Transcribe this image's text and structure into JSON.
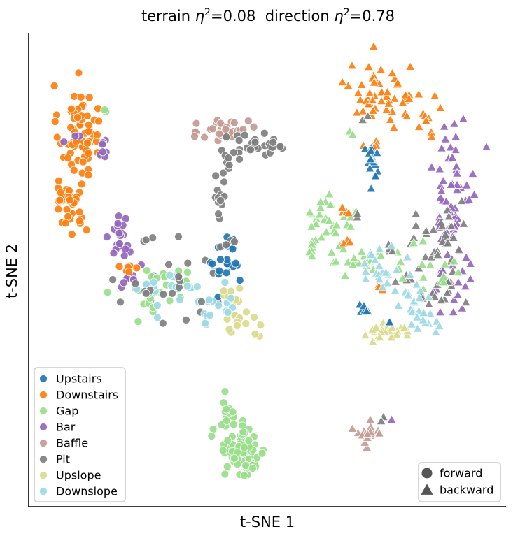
{
  "chart_data": {
    "type": "scatter",
    "title": {
      "part1_prefix": "terrain ",
      "part1_value": "=0.08",
      "part2_prefix": "direction ",
      "part2_value": "=0.78",
      "symbol": "η",
      "exponent": "2"
    },
    "xlabel": "t-SNE 1",
    "ylabel": "t-SNE 2",
    "xlim": [
      0,
      100
    ],
    "ylim": [
      0,
      100
    ],
    "x_ticks": "none",
    "y_ticks": "none",
    "grid": false,
    "legend_terrain_placement": "bottom-left",
    "legend_direction_placement": "bottom-right",
    "colors": {
      "Upstairs": "#1f77b4",
      "Downstairs": "#ff7f0e",
      "Gap": "#98df8a",
      "Bar": "#9467bd",
      "Baffle": "#c49c94",
      "Pit": "#7f7f7f",
      "Upslope": "#dbdb8d",
      "Downslope": "#9edae5"
    },
    "terrain_order": [
      "Upstairs",
      "Downstairs",
      "Gap",
      "Bar",
      "Baffle",
      "Pit",
      "Upslope",
      "Downslope"
    ],
    "directions": [
      {
        "name": "forward",
        "marker": "circle"
      },
      {
        "name": "backward",
        "marker": "triangle"
      }
    ],
    "clusters": [
      {
        "terrain": "Downstairs",
        "direction": "forward",
        "cx": 9.5,
        "cy": 82,
        "sx": 2.2,
        "sy": 5,
        "n": 65
      },
      {
        "terrain": "Downstairs",
        "direction": "forward",
        "cx": 7.5,
        "cy": 66,
        "sx": 2,
        "sy": 3.5,
        "n": 40
      },
      {
        "terrain": "Gap",
        "direction": "forward",
        "cx": 15,
        "cy": 86,
        "sx": 0.4,
        "sy": 0.5,
        "n": 2
      },
      {
        "terrain": "Bar",
        "direction": "forward",
        "cx": 14,
        "cy": 78.5,
        "sx": 1.4,
        "sy": 1.8,
        "n": 7
      },
      {
        "terrain": "Bar",
        "direction": "forward",
        "cx": 8,
        "cy": 79,
        "sx": 0.8,
        "sy": 1,
        "n": 3
      },
      {
        "terrain": "Bar",
        "direction": "forward",
        "cx": 18.5,
        "cy": 58.5,
        "sx": 1.2,
        "sy": 3.2,
        "n": 22
      },
      {
        "terrain": "Bar",
        "direction": "forward",
        "cx": 23,
        "cy": 48,
        "sx": 2.5,
        "sy": 1.5,
        "n": 12
      },
      {
        "terrain": "Downstairs",
        "direction": "forward",
        "cx": 20.5,
        "cy": 51,
        "sx": 1.5,
        "sy": 1,
        "n": 6
      },
      {
        "terrain": "Gap",
        "direction": "forward",
        "cx": 27,
        "cy": 47,
        "sx": 4,
        "sy": 3,
        "n": 25
      },
      {
        "terrain": "Downslope",
        "direction": "forward",
        "cx": 31,
        "cy": 46.5,
        "sx": 6,
        "sy": 3,
        "n": 25
      },
      {
        "terrain": "Pit",
        "direction": "forward",
        "cx": 32,
        "cy": 46,
        "sx": 7,
        "sy": 4.5,
        "n": 22
      },
      {
        "terrain": "Upstairs",
        "direction": "forward",
        "cx": 42,
        "cy": 52,
        "sx": 1.6,
        "sy": 3.2,
        "n": 22
      },
      {
        "terrain": "Upslope",
        "direction": "forward",
        "cx": 44,
        "cy": 42,
        "sx": 2.2,
        "sy": 3.5,
        "n": 25
      },
      {
        "terrain": "Downslope",
        "direction": "forward",
        "cx": 39,
        "cy": 41.5,
        "sx": 3,
        "sy": 1.5,
        "n": 12
      },
      {
        "terrain": "Baffle",
        "direction": "forward",
        "cx": 41,
        "cy": 82,
        "sx": 2.5,
        "sy": 1.8,
        "n": 35
      },
      {
        "terrain": "Pit",
        "direction": "forward",
        "cx": 46,
        "cy": 78.5,
        "sx": 3,
        "sy": 2,
        "n": 20
      },
      {
        "terrain": "Pit",
        "direction": "forward",
        "cx": 51.5,
        "cy": 78,
        "sx": 1.5,
        "sy": 1,
        "n": 10
      },
      {
        "terrain": "Pit",
        "direction": "forward",
        "cx": 41.5,
        "cy": 73,
        "sx": 0.8,
        "sy": 1.5,
        "n": 6
      },
      {
        "terrain": "Pit",
        "direction": "forward",
        "cx": 39.5,
        "cy": 66.5,
        "sx": 0.8,
        "sy": 2,
        "n": 12
      },
      {
        "terrain": "Pit",
        "direction": "forward",
        "cx": 42,
        "cy": 57,
        "sx": 1.5,
        "sy": 1.5,
        "n": 4
      },
      {
        "terrain": "Pit",
        "direction": "forward",
        "cx": 25,
        "cy": 58,
        "sx": 1,
        "sy": 0.6,
        "n": 3
      },
      {
        "terrain": "Gap",
        "direction": "forward",
        "cx": 42,
        "cy": 20,
        "sx": 0.8,
        "sy": 1.3,
        "n": 10
      },
      {
        "terrain": "Gap",
        "direction": "forward",
        "cx": 45,
        "cy": 10.5,
        "sx": 2.5,
        "sy": 3,
        "n": 85
      },
      {
        "terrain": "Downstairs",
        "direction": "backward",
        "cx": 76,
        "cy": 90,
        "sx": 4,
        "sy": 3.5,
        "n": 55
      },
      {
        "terrain": "Downstairs",
        "direction": "backward",
        "cx": 83,
        "cy": 83,
        "sx": 3,
        "sy": 2,
        "n": 8
      },
      {
        "terrain": "Downstairs",
        "direction": "backward",
        "cx": 74,
        "cy": 78.5,
        "sx": 1,
        "sy": 1.2,
        "n": 4
      },
      {
        "terrain": "Pit",
        "direction": "backward",
        "cx": 71.5,
        "cy": 85,
        "sx": 0.5,
        "sy": 0.5,
        "n": 2
      },
      {
        "terrain": "Upstairs",
        "direction": "backward",
        "cx": 73,
        "cy": 74,
        "sx": 1,
        "sy": 2.5,
        "n": 18
      },
      {
        "terrain": "Bar",
        "direction": "backward",
        "cx": 90.5,
        "cy": 71,
        "sx": 2.5,
        "sy": 7,
        "n": 45
      },
      {
        "terrain": "Bar",
        "direction": "backward",
        "cx": 90,
        "cy": 55,
        "sx": 2,
        "sy": 4,
        "n": 18
      },
      {
        "terrain": "Bar",
        "direction": "backward",
        "cx": 89,
        "cy": 46,
        "sx": 2,
        "sy": 2.5,
        "n": 10
      },
      {
        "terrain": "Pit",
        "direction": "backward",
        "cx": 87.5,
        "cy": 56,
        "sx": 3.5,
        "sy": 4,
        "n": 30
      },
      {
        "terrain": "Pit",
        "direction": "backward",
        "cx": 87.5,
        "cy": 46.5,
        "sx": 2.5,
        "sy": 2.5,
        "n": 15
      },
      {
        "terrain": "Pit",
        "direction": "backward",
        "cx": 80.5,
        "cy": 49,
        "sx": 1.5,
        "sy": 1,
        "n": 4
      },
      {
        "terrain": "Gap",
        "direction": "backward",
        "cx": 64,
        "cy": 62,
        "sx": 2.5,
        "sy": 2.5,
        "n": 30
      },
      {
        "terrain": "Gap",
        "direction": "backward",
        "cx": 70,
        "cy": 54,
        "sx": 3,
        "sy": 2.5,
        "n": 22
      },
      {
        "terrain": "Gap",
        "direction": "backward",
        "cx": 86,
        "cy": 52,
        "sx": 3.5,
        "sy": 3,
        "n": 15
      },
      {
        "terrain": "Gap",
        "direction": "backward",
        "cx": 68.5,
        "cy": 81,
        "sx": 0.4,
        "sy": 0.4,
        "n": 2
      },
      {
        "terrain": "Gap",
        "direction": "backward",
        "cx": 59,
        "cy": 55,
        "sx": 1.2,
        "sy": 1.2,
        "n": 5
      },
      {
        "terrain": "Downstairs",
        "direction": "backward",
        "cx": 67.5,
        "cy": 64,
        "sx": 0.8,
        "sy": 0.8,
        "n": 4
      },
      {
        "terrain": "Downstairs",
        "direction": "backward",
        "cx": 67.5,
        "cy": 57.5,
        "sx": 0.6,
        "sy": 0.6,
        "n": 3
      },
      {
        "terrain": "Downstairs",
        "direction": "backward",
        "cx": 75,
        "cy": 47,
        "sx": 0.6,
        "sy": 0.6,
        "n": 3
      },
      {
        "terrain": "Pit",
        "direction": "backward",
        "cx": 70,
        "cy": 63,
        "sx": 0.4,
        "sy": 0.4,
        "n": 2
      },
      {
        "terrain": "Pit",
        "direction": "backward",
        "cx": 76.5,
        "cy": 55.5,
        "sx": 0.8,
        "sy": 0.6,
        "n": 4
      },
      {
        "terrain": "Downslope",
        "direction": "backward",
        "cx": 75,
        "cy": 51,
        "sx": 2.5,
        "sy": 2.5,
        "n": 22
      },
      {
        "terrain": "Downslope",
        "direction": "backward",
        "cx": 81.5,
        "cy": 44.5,
        "sx": 2,
        "sy": 2,
        "n": 15
      },
      {
        "terrain": "Downslope",
        "direction": "backward",
        "cx": 85,
        "cy": 39.5,
        "sx": 1.5,
        "sy": 1.5,
        "n": 12
      },
      {
        "terrain": "Upslope",
        "direction": "backward",
        "cx": 76,
        "cy": 37,
        "sx": 3,
        "sy": 0.8,
        "n": 28
      },
      {
        "terrain": "Upstairs",
        "direction": "backward",
        "cx": 71.5,
        "cy": 42,
        "sx": 0.8,
        "sy": 0.8,
        "n": 6
      },
      {
        "terrain": "Upstairs",
        "direction": "backward",
        "cx": 76.5,
        "cy": 38.5,
        "sx": 0.4,
        "sy": 0.4,
        "n": 2
      },
      {
        "terrain": "Baffle",
        "direction": "backward",
        "cx": 72,
        "cy": 14,
        "sx": 1.6,
        "sy": 1.2,
        "n": 22
      },
      {
        "terrain": "Pit",
        "direction": "backward",
        "cx": 75.5,
        "cy": 17.5,
        "sx": 0.8,
        "sy": 0.4,
        "n": 3
      },
      {
        "terrain": "Bar",
        "direction": "backward",
        "cx": 77.5,
        "cy": 17.5,
        "sx": 0.3,
        "sy": 0.3,
        "n": 1
      }
    ]
  }
}
